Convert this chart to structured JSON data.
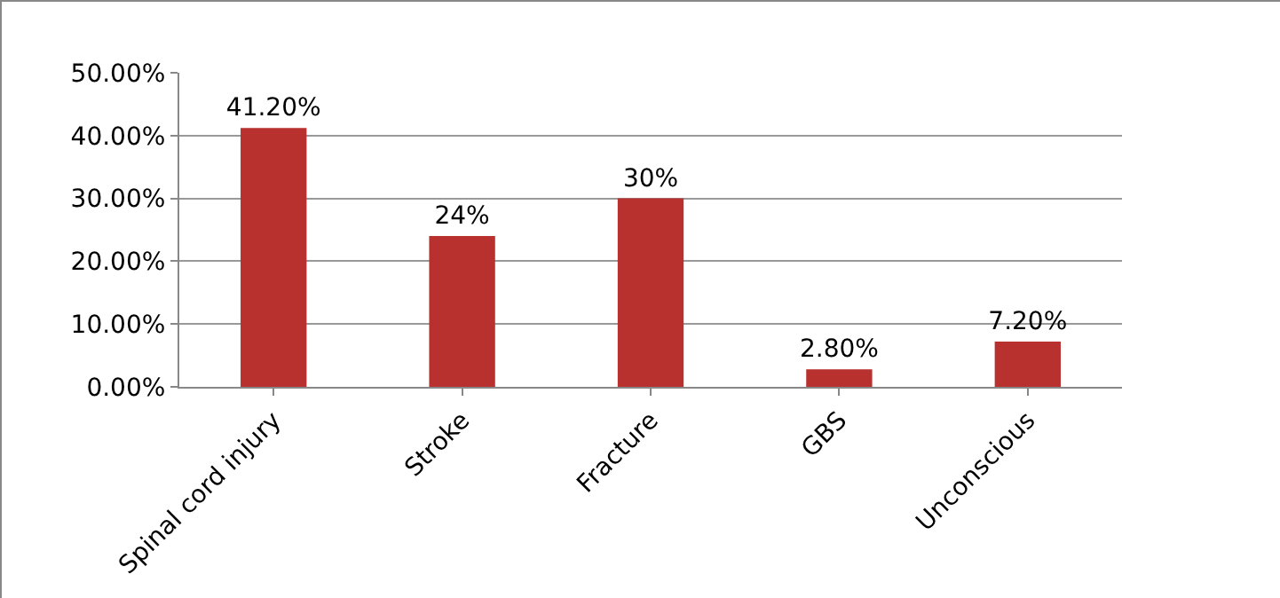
{
  "chart_data": {
    "type": "bar",
    "categories": [
      "Spinal cord injury",
      "Stroke",
      "Fracture",
      "GBS",
      "Unconscious"
    ],
    "values": [
      41.2,
      24,
      30,
      2.8,
      7.2
    ],
    "value_labels": [
      "41.20%",
      "24%",
      "30%",
      "2.80%",
      "7.20%"
    ],
    "color": "#b8312f",
    "ylim": [
      0,
      50
    ],
    "yticks": [
      {
        "value": 0,
        "label": "0.00%"
      },
      {
        "value": 10,
        "label": "10.00%"
      },
      {
        "value": 20,
        "label": "20.00%"
      },
      {
        "value": 30,
        "label": "30.00%"
      },
      {
        "value": 40,
        "label": "40.00%"
      },
      {
        "value": 50,
        "label": "50.00%"
      }
    ],
    "grid": "y"
  }
}
